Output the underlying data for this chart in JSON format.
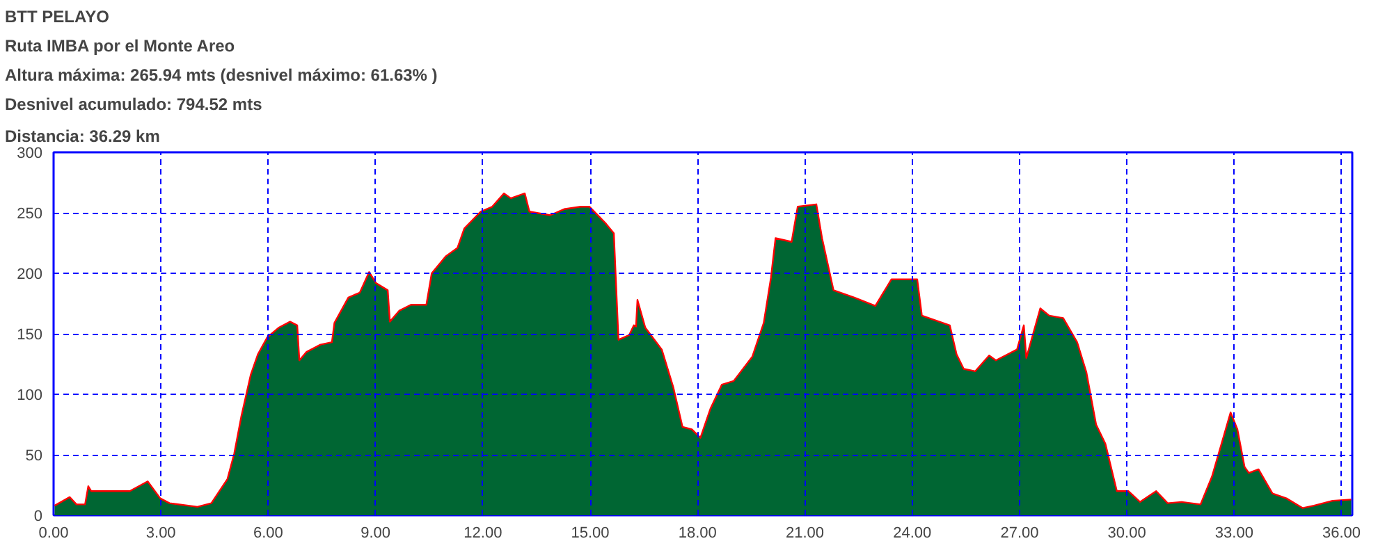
{
  "chart_data": {
    "type": "area",
    "title": "BTT PELAYO",
    "subtitle": "Ruta IMBA por el Monte Areo",
    "annotations": [
      "Altura máxima: 265.94 mts (desnivel máximo: 61.63% )",
      "Desnivel acumulado: 794.52 mts",
      "Distancia: 36.29 km"
    ],
    "x": [
      0.03,
      0.45,
      0.64,
      0.88,
      0.97,
      1.05,
      2.13,
      2.63,
      2.98,
      3.24,
      4.02,
      4.41,
      4.86,
      5.05,
      5.25,
      5.51,
      5.71,
      5.97,
      6.29,
      6.61,
      6.81,
      6.87,
      7.07,
      7.46,
      7.78,
      7.85,
      8.24,
      8.56,
      8.82,
      9.01,
      9.34,
      9.4,
      9.66,
      9.99,
      10.42,
      10.57,
      10.96,
      11.29,
      11.48,
      11.94,
      12.26,
      12.59,
      12.78,
      13.17,
      13.3,
      13.88,
      14.27,
      14.73,
      14.98,
      15.44,
      15.66,
      15.79,
      16.09,
      16.22,
      16.28,
      16.32,
      16.54,
      17.0,
      17.32,
      17.58,
      17.84,
      18.08,
      18.36,
      18.68,
      19.01,
      19.53,
      19.85,
      20.05,
      20.18,
      20.63,
      20.8,
      21.32,
      21.48,
      21.8,
      22.38,
      22.97,
      23.42,
      24.14,
      24.27,
      25.05,
      25.24,
      25.44,
      25.76,
      26.15,
      26.34,
      26.93,
      27.12,
      27.19,
      27.58,
      27.83,
      28.22,
      28.61,
      28.87,
      29.14,
      29.4,
      29.72,
      30.04,
      30.37,
      30.82,
      31.14,
      31.53,
      32.06,
      32.38,
      32.9,
      33.09,
      33.29,
      33.41,
      33.68,
      34.07,
      34.46,
      34.91,
      35.23,
      35.75,
      36.27
    ],
    "series": [
      {
        "color": "#006633",
        "values": [
          8,
          15,
          9,
          9,
          24,
          20,
          20,
          28,
          14,
          10,
          7,
          10,
          30,
          51,
          82,
          116,
          133,
          147,
          155,
          160,
          157,
          128,
          135,
          141,
          143,
          159,
          180,
          184,
          201,
          192,
          186,
          160,
          169,
          174,
          174,
          200,
          214,
          221,
          237,
          251,
          255,
          266,
          262,
          266,
          251,
          248,
          253,
          255,
          255,
          241,
          233,
          145,
          149,
          157,
          156,
          178,
          155,
          137,
          106,
          73,
          71,
          64,
          88,
          108,
          111,
          131,
          159,
          196,
          229,
          226,
          255,
          257,
          229,
          186,
          180,
          173,
          195,
          195,
          165,
          157,
          133,
          121,
          119,
          132,
          128,
          137,
          157,
          130,
          171,
          165,
          163,
          143,
          118,
          75,
          59,
          20,
          20,
          11,
          20,
          10,
          11,
          9,
          32,
          85,
          71,
          40,
          35,
          38,
          18,
          14,
          6,
          8,
          12,
          13
        ]
      },
      {
        "type": "line",
        "color": "#ff0000",
        "values": [
          8,
          15,
          9,
          9,
          24,
          20,
          20,
          28,
          14,
          10,
          7,
          10,
          30,
          51,
          82,
          116,
          133,
          147,
          155,
          160,
          157,
          128,
          135,
          141,
          143,
          159,
          180,
          184,
          201,
          192,
          186,
          160,
          169,
          174,
          174,
          200,
          214,
          221,
          237,
          251,
          255,
          266,
          262,
          266,
          251,
          248,
          253,
          255,
          255,
          241,
          233,
          145,
          149,
          157,
          156,
          178,
          155,
          137,
          106,
          73,
          71,
          64,
          88,
          108,
          111,
          131,
          159,
          196,
          229,
          226,
          255,
          257,
          229,
          186,
          180,
          173,
          195,
          195,
          165,
          157,
          133,
          121,
          119,
          132,
          128,
          137,
          157,
          130,
          171,
          165,
          163,
          143,
          118,
          75,
          59,
          20,
          20,
          11,
          20,
          10,
          11,
          9,
          32,
          85,
          71,
          40,
          35,
          38,
          18,
          14,
          6,
          8,
          12,
          13
        ]
      }
    ],
    "xlim": [
      0,
      36.3
    ],
    "ylim": [
      0,
      300
    ],
    "xticks": [
      {
        "value": 0,
        "label": "0.00"
      },
      {
        "value": 3,
        "label": "3.00"
      },
      {
        "value": 6,
        "label": "6.00"
      },
      {
        "value": 9,
        "label": "9.00"
      },
      {
        "value": 12,
        "label": "12.00"
      },
      {
        "value": 15,
        "label": "15.00"
      },
      {
        "value": 18,
        "label": "18.00"
      },
      {
        "value": 21,
        "label": "21.00"
      },
      {
        "value": 24,
        "label": "24.00"
      },
      {
        "value": 27,
        "label": "27.00"
      },
      {
        "value": 30,
        "label": "30.00"
      },
      {
        "value": 33,
        "label": "33.00"
      },
      {
        "value": 36,
        "label": "36.00"
      }
    ],
    "yticks": [
      0,
      50,
      100,
      150,
      200,
      250,
      300
    ],
    "grid": true,
    "line_style": "solid"
  }
}
